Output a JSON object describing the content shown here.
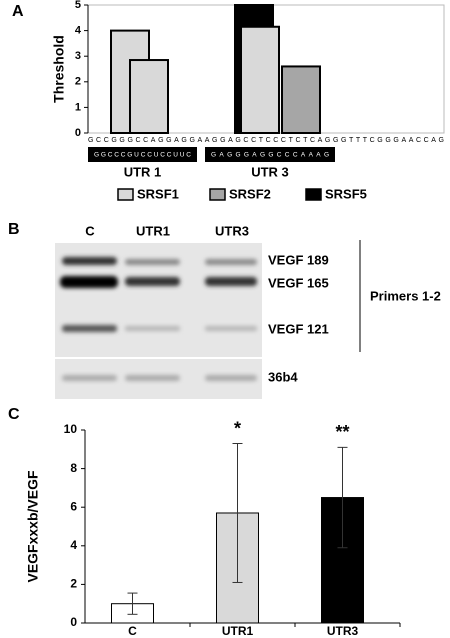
{
  "panel_labels": [
    "A",
    "B",
    "C"
  ],
  "chart_data": [
    {
      "type": "bar",
      "ylabel": "Threshold",
      "ylim": [
        0,
        5
      ],
      "yticks": [
        0,
        1,
        2,
        3,
        4,
        5
      ],
      "sequence": "GCCGGGCCAGGAGGAAGGAGCCTCCCTCTCAGGGTTTCGGGAACCAG",
      "groups": [
        "UTR 1",
        "UTR 3"
      ],
      "group_sequences": [
        "GGCCCGUCCUCCUUC",
        "GAGGGAGGCCCAAAG"
      ],
      "series": [
        {
          "name": "SRSF1",
          "color": "#d9d9d9",
          "values": [
            4,
            2.85,
            4.15
          ]
        },
        {
          "name": "SRSF2",
          "color": "#a6a6a6",
          "values": [
            2.6
          ]
        },
        {
          "name": "SRSF5",
          "color": "#000000",
          "values": [
            5
          ]
        }
      ]
    },
    {
      "type": "bar",
      "ylabel": "VEGFxxxb/VEGF",
      "ylim": [
        0,
        10
      ],
      "yticks": [
        0,
        2,
        4,
        6,
        8,
        10
      ],
      "categories": [
        "C",
        "UTR1",
        "UTR3"
      ],
      "values": [
        1,
        5.7,
        6.5
      ],
      "errors": [
        0.55,
        3.6,
        2.6
      ],
      "colors": [
        "#ffffff",
        "#d9d9d9",
        "#000000"
      ],
      "annotations": [
        null,
        "*",
        "**"
      ]
    }
  ],
  "gel": {
    "lanes": [
      "C",
      "UTR1",
      "UTR3"
    ],
    "bands": [
      "VEGF 189",
      "VEGF 165",
      "VEGF 121"
    ],
    "control": "36b4",
    "primers": "Primers 1-2"
  }
}
